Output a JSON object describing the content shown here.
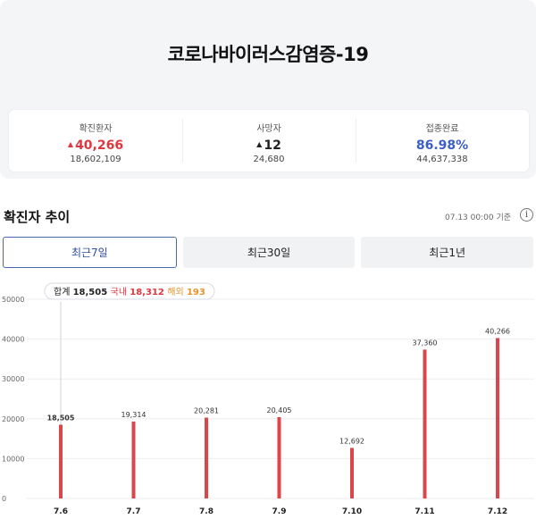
{
  "header": {
    "title": "코로나바이러스감염증-19"
  },
  "stats": [
    {
      "label": "확진환자",
      "value": "40,266",
      "sub": "18,602,109",
      "trend": "up",
      "color": "#e0363d"
    },
    {
      "label": "사망자",
      "value": "12",
      "sub": "24,680",
      "trend": "up",
      "color": "#222222"
    },
    {
      "label": "접종완료",
      "value": "86.98%",
      "sub": "44,637,338",
      "trend": "none",
      "color": "#3b5fc4"
    }
  ],
  "trend_section": {
    "title": "확진자 추이",
    "as_of": "07.13 00:00 기준",
    "info_icon": "info-icon"
  },
  "tabs": [
    {
      "label": "최근7일",
      "active": true
    },
    {
      "label": "최근30일",
      "active": false
    },
    {
      "label": "최근1년",
      "active": false
    }
  ],
  "tooltip": {
    "total_label": "합계",
    "total_value": "18,505",
    "domestic_label": "국내",
    "domestic_value": "18,312",
    "overseas_label": "해외",
    "overseas_value": "193"
  },
  "chart_data": {
    "type": "bar",
    "categories": [
      "7.6",
      "7.7",
      "7.8",
      "7.9",
      "7.10",
      "7.11",
      "7.12"
    ],
    "values": [
      18505,
      19314,
      20281,
      20405,
      12692,
      37360,
      40266
    ],
    "value_labels": [
      "18,505",
      "19,314",
      "20,281",
      "20,405",
      "12,692",
      "37,360",
      "40,266"
    ],
    "yticks": [
      0,
      10000,
      20000,
      30000,
      40000,
      50000
    ],
    "ylim": [
      0,
      50000
    ],
    "bar_color": "#d9474b",
    "grid": true,
    "highlight_index": 0
  }
}
